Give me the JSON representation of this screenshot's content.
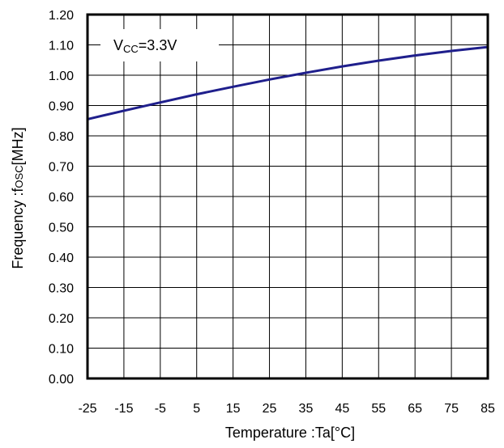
{
  "chart_data": {
    "type": "line",
    "xlabel": "Temperature :Ta[°C]",
    "ylabel": "Frequency :fosc[MHz]",
    "ylabel_main": "Frequency :f",
    "ylabel_sub": "OSC",
    "ylabel_unit": "[MHz]",
    "annotation": "VCC=3.3V",
    "annotation_main": "V",
    "annotation_sub": "CC",
    "annotation_rest": "=3.3V",
    "xlim": [
      -25,
      85
    ],
    "ylim": [
      0.0,
      1.2
    ],
    "x_ticks": [
      "-25",
      "-15",
      "-5",
      "5",
      "15",
      "25",
      "35",
      "45",
      "55",
      "65",
      "75",
      "85"
    ],
    "x_tick_values": [
      -25,
      -15,
      -5,
      5,
      15,
      25,
      35,
      45,
      55,
      65,
      75,
      85
    ],
    "y_ticks": [
      "0.00",
      "0.10",
      "0.20",
      "0.30",
      "0.40",
      "0.50",
      "0.60",
      "0.70",
      "0.80",
      "0.90",
      "1.00",
      "1.10",
      "1.20"
    ],
    "y_tick_values": [
      0.0,
      0.1,
      0.2,
      0.3,
      0.4,
      0.5,
      0.6,
      0.7,
      0.8,
      0.9,
      1.0,
      1.1,
      1.2
    ],
    "grid": true,
    "series": [
      {
        "color": "#1f1f8c",
        "x": [
          -25,
          -15,
          -5,
          5,
          15,
          25,
          35,
          45,
          55,
          65,
          75,
          85
        ],
        "y": [
          0.855,
          0.883,
          0.91,
          0.937,
          0.962,
          0.986,
          1.008,
          1.029,
          1.048,
          1.065,
          1.08,
          1.093
        ]
      }
    ]
  }
}
